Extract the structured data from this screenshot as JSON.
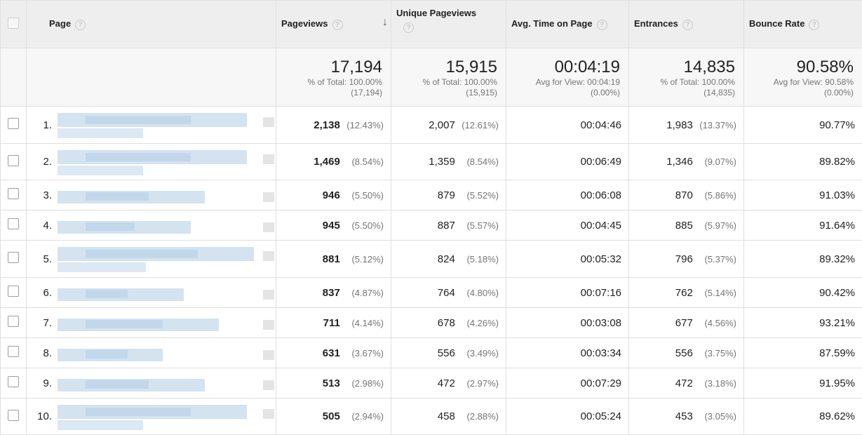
{
  "columns": {
    "page": "Page",
    "pageviews": "Pageviews",
    "unique": "Unique Pageviews",
    "avg_time": "Avg. Time on Page",
    "entrances": "Entrances",
    "bounce": "Bounce Rate"
  },
  "totals": {
    "pageviews": {
      "value": "17,194",
      "line1": "% of Total: 100.00%",
      "line2": "(17,194)"
    },
    "unique": {
      "value": "15,915",
      "line1": "% of Total: 100.00%",
      "line2": "(15,915)"
    },
    "avg_time": {
      "value": "00:04:19",
      "line1": "Avg for View: 00:04:19",
      "line2": "(0.00%)"
    },
    "entrances": {
      "value": "14,835",
      "line1": "% of Total: 100.00%",
      "line2": "(14,835)"
    },
    "bounce": {
      "value": "90.58%",
      "line1": "Avg for View: 90.58%",
      "line2": "(0.00%)"
    }
  },
  "rows": [
    {
      "index": "1.",
      "pageviews": "2,138",
      "pageviews_pct": "(12.43%)",
      "unique": "2,007",
      "unique_pct": "(12.61%)",
      "avg_time": "00:04:46",
      "entrances": "1,983",
      "entrances_pct": "(13.37%)",
      "bounce": "90.77%"
    },
    {
      "index": "2.",
      "pageviews": "1,469",
      "pageviews_pct": "(8.54%)",
      "unique": "1,359",
      "unique_pct": "(8.54%)",
      "avg_time": "00:06:49",
      "entrances": "1,346",
      "entrances_pct": "(9.07%)",
      "bounce": "89.82%"
    },
    {
      "index": "3.",
      "pageviews": "946",
      "pageviews_pct": "(5.50%)",
      "unique": "879",
      "unique_pct": "(5.52%)",
      "avg_time": "00:06:08",
      "entrances": "870",
      "entrances_pct": "(5.86%)",
      "bounce": "91.03%"
    },
    {
      "index": "4.",
      "pageviews": "945",
      "pageviews_pct": "(5.50%)",
      "unique": "887",
      "unique_pct": "(5.57%)",
      "avg_time": "00:04:45",
      "entrances": "885",
      "entrances_pct": "(5.97%)",
      "bounce": "91.64%"
    },
    {
      "index": "5.",
      "pageviews": "881",
      "pageviews_pct": "(5.12%)",
      "unique": "824",
      "unique_pct": "(5.18%)",
      "avg_time": "00:05:32",
      "entrances": "796",
      "entrances_pct": "(5.37%)",
      "bounce": "89.32%"
    },
    {
      "index": "6.",
      "pageviews": "837",
      "pageviews_pct": "(4.87%)",
      "unique": "764",
      "unique_pct": "(4.80%)",
      "avg_time": "00:07:16",
      "entrances": "762",
      "entrances_pct": "(5.14%)",
      "bounce": "90.42%"
    },
    {
      "index": "7.",
      "pageviews": "711",
      "pageviews_pct": "(4.14%)",
      "unique": "678",
      "unique_pct": "(4.26%)",
      "avg_time": "00:03:08",
      "entrances": "677",
      "entrances_pct": "(4.56%)",
      "bounce": "93.21%"
    },
    {
      "index": "8.",
      "pageviews": "631",
      "pageviews_pct": "(3.67%)",
      "unique": "556",
      "unique_pct": "(3.49%)",
      "avg_time": "00:03:34",
      "entrances": "556",
      "entrances_pct": "(3.75%)",
      "bounce": "87.59%"
    },
    {
      "index": "9.",
      "pageviews": "513",
      "pageviews_pct": "(2.98%)",
      "unique": "472",
      "unique_pct": "(2.97%)",
      "avg_time": "00:07:29",
      "entrances": "472",
      "entrances_pct": "(3.18%)",
      "bounce": "91.95%"
    },
    {
      "index": "10.",
      "pageviews": "505",
      "pageviews_pct": "(2.94%)",
      "unique": "458",
      "unique_pct": "(2.88%)",
      "avg_time": "00:05:24",
      "entrances": "453",
      "entrances_pct": "(3.05%)",
      "bounce": "89.62%"
    }
  ],
  "icons": {
    "help": "?",
    "sort_desc": "↓"
  },
  "colors": {
    "header_bg": "#eeeeee",
    "totals_bg": "#f7f7f7",
    "blur_block": "#c9dced"
  }
}
